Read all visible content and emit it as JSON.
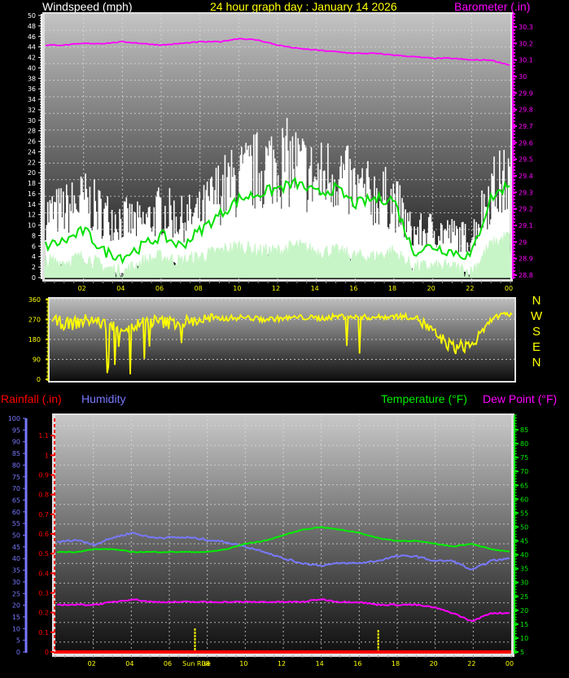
{
  "header": {
    "wind_title": "Windspeed (mph)",
    "graph_title": "24 hour graph day : January 14 2026",
    "baro_title": "Barometer (.in)"
  },
  "compass": [
    "N",
    "W",
    "S",
    "E",
    "N"
  ],
  "lower_header": {
    "rain_title": "Rainfall (.in)",
    "humidity_title": "Humidity",
    "temp_title": "Temperature (°F)",
    "dew_title": "Dew Point (°F)"
  },
  "sun": {
    "sunrise_label": "Sun Rise",
    "sunrise_hour": 7.35,
    "sunset_hour": 17.0
  },
  "colors": {
    "wind_gust": "#ffffff",
    "wind_avg": "#00e000",
    "wind_speed": "#c8f5c8",
    "barometer": "#ff00ff",
    "direction": "#ffff00",
    "rain": "#ff0000",
    "humidity": "#7878ff",
    "temperature": "#00ee00",
    "dewpoint": "#ff00ff",
    "axis_time": "#ffff00"
  },
  "chart_data": [
    {
      "type": "line",
      "title": "24 hour graph day : January 14 2026",
      "xlabel": "Hour",
      "ylabel": "Windspeed (mph)",
      "y2label": "Barometer (.in)",
      "x_ticks": [
        "02",
        "04",
        "06",
        "08",
        "10",
        "12",
        "14",
        "16",
        "18",
        "20",
        "22",
        "00"
      ],
      "ylim": [
        0,
        50
      ],
      "y_ticks": [
        0,
        2,
        4,
        6,
        8,
        10,
        12,
        14,
        16,
        18,
        20,
        22,
        24,
        26,
        28,
        30,
        32,
        34,
        36,
        38,
        40,
        42,
        44,
        46,
        48,
        50
      ],
      "y2lim": [
        28.8,
        30.35
      ],
      "y2_ticks": [
        "28.8",
        "28.9",
        "29",
        "29.1",
        "29.2",
        "29.3",
        "29.4",
        "29.5",
        "29.6",
        "29.7",
        "29.8",
        "29.9",
        "30",
        "30.1",
        "30.2",
        "30.3"
      ],
      "x": [
        0,
        1,
        2,
        3,
        4,
        5,
        6,
        7,
        8,
        9,
        10,
        11,
        12,
        13,
        14,
        15,
        16,
        17,
        18,
        19,
        20,
        21,
        22,
        23,
        24
      ],
      "series": [
        {
          "name": "Barometer",
          "axis": "y2",
          "values": [
            30.19,
            30.19,
            30.2,
            30.2,
            30.21,
            30.2,
            30.19,
            30.2,
            30.21,
            30.21,
            30.23,
            30.22,
            30.19,
            30.17,
            30.16,
            30.15,
            30.14,
            30.14,
            30.13,
            30.12,
            30.11,
            30.11,
            30.1,
            30.1,
            30.07
          ]
        },
        {
          "name": "Wind Gust",
          "values": [
            13,
            14,
            16,
            13,
            12,
            11,
            14,
            12,
            13,
            18,
            20,
            22,
            24,
            23,
            20,
            22,
            18,
            17,
            16,
            9,
            10,
            9,
            8,
            18,
            20
          ]
        },
        {
          "name": "Wind Average",
          "values": [
            6,
            7,
            9,
            5,
            4,
            6,
            8,
            6,
            9,
            12,
            15,
            16,
            17,
            18,
            16,
            17,
            14,
            15,
            15,
            5,
            6,
            5,
            4,
            15,
            18
          ]
        },
        {
          "name": "Wind Speed",
          "values": [
            3,
            3,
            4,
            2,
            1,
            3,
            4,
            3,
            4,
            5,
            6,
            5,
            5,
            6,
            5,
            5,
            4,
            4,
            5,
            2,
            2,
            2,
            1,
            6,
            8
          ]
        }
      ]
    },
    {
      "type": "line",
      "ylabel": "Wind Direction",
      "ylim": [
        0,
        360
      ],
      "y_ticks": [
        0,
        90,
        180,
        270,
        360
      ],
      "x": [
        0,
        1,
        2,
        3,
        4,
        5,
        6,
        7,
        8,
        9,
        10,
        11,
        12,
        13,
        14,
        15,
        16,
        17,
        18,
        19,
        20,
        21,
        22,
        23,
        24
      ],
      "series": [
        {
          "name": "Direction",
          "values": [
            260,
            250,
            270,
            240,
            230,
            265,
            255,
            260,
            270,
            275,
            280,
            270,
            275,
            280,
            275,
            285,
            280,
            280,
            285,
            280,
            200,
            140,
            160,
            280,
            295
          ]
        }
      ]
    },
    {
      "type": "line",
      "ylabel": "Humidity",
      "y1lim": [
        0,
        100
      ],
      "y1_ticks": [
        0,
        5,
        10,
        15,
        20,
        25,
        30,
        35,
        40,
        45,
        50,
        55,
        60,
        65,
        70,
        75,
        80,
        85,
        90,
        95,
        100
      ],
      "rain_lim": [
        0,
        1.2
      ],
      "rain_ticks": [
        "0",
        "0.1",
        "0.2",
        "0.3",
        "0.4",
        "0.5",
        "0.6",
        "0.7",
        "0.8",
        "0.9",
        "1",
        "1.1"
      ],
      "y2label": "Temperature (°F)",
      "y2lim": [
        4,
        89
      ],
      "y2_ticks": [
        5,
        10,
        15,
        20,
        25,
        30,
        35,
        40,
        45,
        50,
        55,
        60,
        65,
        70,
        75,
        80,
        85
      ],
      "x_ticks": [
        "02",
        "04",
        "06",
        "Sun Rise",
        "08",
        "10",
        "12",
        "14",
        "16",
        "18",
        "20",
        "22",
        "00"
      ],
      "x": [
        0,
        1,
        2,
        3,
        4,
        5,
        6,
        7,
        8,
        9,
        10,
        11,
        12,
        13,
        14,
        15,
        16,
        17,
        18,
        19,
        20,
        21,
        22,
        23,
        24
      ],
      "series": [
        {
          "name": "Humidity",
          "axis": "y1",
          "values": [
            47,
            48,
            46,
            49,
            51,
            49,
            49,
            49,
            48,
            47,
            45,
            43,
            40,
            38,
            37,
            38,
            38,
            39,
            41,
            41,
            39,
            39,
            35,
            39,
            40
          ]
        },
        {
          "name": "Temperature",
          "axis": "y2",
          "values": [
            41,
            41,
            42,
            42,
            41,
            41,
            41,
            41,
            41,
            42,
            44,
            45,
            47,
            49,
            50,
            49,
            48,
            46,
            45,
            45,
            44,
            43,
            44,
            42,
            41
          ]
        },
        {
          "name": "Dew Point",
          "axis": "y2",
          "values": [
            22,
            22,
            22,
            23,
            24,
            23,
            23,
            23,
            23,
            23,
            23,
            23,
            23,
            23,
            24,
            23,
            23,
            22,
            22,
            22,
            21,
            19,
            16,
            19,
            19
          ]
        },
        {
          "name": "Rainfall",
          "axis": "rain",
          "values": [
            0,
            0,
            0,
            0,
            0,
            0,
            0,
            0,
            0,
            0,
            0,
            0,
            0,
            0,
            0,
            0,
            0,
            0,
            0,
            0,
            0,
            0,
            0,
            0,
            0
          ]
        }
      ]
    }
  ]
}
